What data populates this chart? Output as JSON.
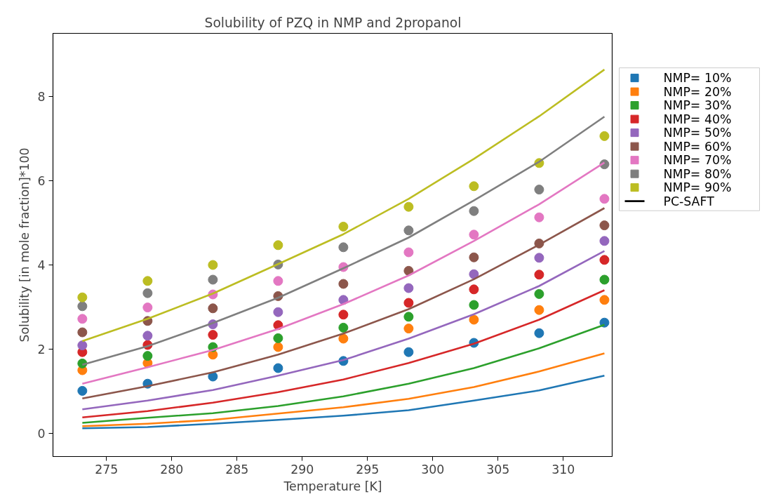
{
  "chart_data": {
    "type": "scatter",
    "title": "Solubility of PZQ in NMP and 2propanol",
    "xlabel": "Temperature [K]",
    "ylabel": "Solubility [in mole fraction]*100",
    "x": [
      273.15,
      278.15,
      283.15,
      288.15,
      293.15,
      298.15,
      303.15,
      308.15,
      313.15
    ],
    "xlim": [
      270.9,
      313.8
    ],
    "ylim": [
      -0.55,
      9.5
    ],
    "xticks": [
      275,
      280,
      285,
      290,
      295,
      300,
      305,
      310
    ],
    "yticks": [
      0,
      2,
      4,
      6,
      8
    ],
    "grid": false,
    "legend": "right",
    "marker": "circle",
    "line_style": "solid",
    "annotations": [
      "PC-SAFT"
    ],
    "series": [
      {
        "name": "NMP= 10%",
        "color": "#1f77b4",
        "values": [
          1.01,
          1.18,
          1.35,
          1.55,
          1.72,
          1.93,
          2.15,
          2.38,
          2.63
        ]
      },
      {
        "name": "NMP= 20%",
        "color": "#ff7f0e",
        "values": [
          1.5,
          1.67,
          1.87,
          2.05,
          2.25,
          2.49,
          2.7,
          2.93,
          3.17
        ]
      },
      {
        "name": "NMP= 30%",
        "color": "#2ca02c",
        "values": [
          1.66,
          1.84,
          2.05,
          2.26,
          2.51,
          2.77,
          3.05,
          3.31,
          3.65
        ]
      },
      {
        "name": "NMP= 40%",
        "color": "#d62728",
        "values": [
          1.93,
          2.1,
          2.34,
          2.57,
          2.82,
          3.1,
          3.42,
          3.77,
          4.12
        ]
      },
      {
        "name": "NMP= 50%",
        "color": "#9467bd",
        "values": [
          2.09,
          2.32,
          2.59,
          2.88,
          3.17,
          3.45,
          3.78,
          4.17,
          4.57
        ]
      },
      {
        "name": "NMP= 60%",
        "color": "#8c564b",
        "values": [
          2.4,
          2.67,
          2.97,
          3.26,
          3.55,
          3.86,
          4.18,
          4.51,
          4.94
        ]
      },
      {
        "name": "NMP= 70%",
        "color": "#e377c2",
        "values": [
          2.72,
          2.99,
          3.3,
          3.62,
          3.95,
          4.3,
          4.72,
          5.13,
          5.57
        ]
      },
      {
        "name": "NMP= 80%",
        "color": "#7f7f7f",
        "values": [
          3.02,
          3.33,
          3.65,
          4.01,
          4.42,
          4.82,
          5.28,
          5.79,
          6.39
        ]
      },
      {
        "name": "NMP= 90%",
        "color": "#bcbd22",
        "values": [
          3.23,
          3.62,
          4.0,
          4.47,
          4.91,
          5.38,
          5.87,
          6.42,
          7.06
        ]
      },
      {
        "type": "line",
        "marker": "none",
        "color": "#1f77b4",
        "values": [
          0.12,
          0.15,
          0.23,
          0.32,
          0.42,
          0.55,
          0.78,
          1.02,
          1.37
        ]
      },
      {
        "type": "line",
        "marker": "none",
        "color": "#ff7f0e",
        "values": [
          0.17,
          0.23,
          0.32,
          0.47,
          0.62,
          0.82,
          1.1,
          1.47,
          1.9
        ]
      },
      {
        "type": "line",
        "marker": "none",
        "color": "#2ca02c",
        "values": [
          0.25,
          0.37,
          0.48,
          0.65,
          0.88,
          1.18,
          1.55,
          2.02,
          2.58
        ]
      },
      {
        "type": "line",
        "marker": "none",
        "color": "#d62728",
        "values": [
          0.38,
          0.53,
          0.73,
          0.98,
          1.28,
          1.67,
          2.13,
          2.7,
          3.4
        ]
      },
      {
        "type": "line",
        "marker": "none",
        "color": "#9467bd",
        "values": [
          0.57,
          0.78,
          1.03,
          1.37,
          1.74,
          2.25,
          2.83,
          3.5,
          4.33
        ]
      },
      {
        "type": "line",
        "marker": "none",
        "color": "#8c564b",
        "values": [
          0.83,
          1.12,
          1.45,
          1.87,
          2.37,
          2.95,
          3.66,
          4.48,
          5.35
        ]
      },
      {
        "type": "line",
        "marker": "none",
        "color": "#e377c2",
        "values": [
          1.18,
          1.57,
          1.98,
          2.48,
          3.07,
          3.75,
          4.57,
          5.44,
          6.43
        ]
      },
      {
        "type": "line",
        "marker": "none",
        "color": "#7f7f7f",
        "values": [
          1.63,
          2.07,
          2.62,
          3.22,
          3.92,
          4.65,
          5.53,
          6.45,
          7.52
        ]
      },
      {
        "type": "line",
        "marker": "none",
        "color": "#bcbd22",
        "values": [
          2.19,
          2.72,
          3.32,
          4.02,
          4.73,
          5.57,
          6.52,
          7.53,
          8.64
        ]
      }
    ]
  }
}
